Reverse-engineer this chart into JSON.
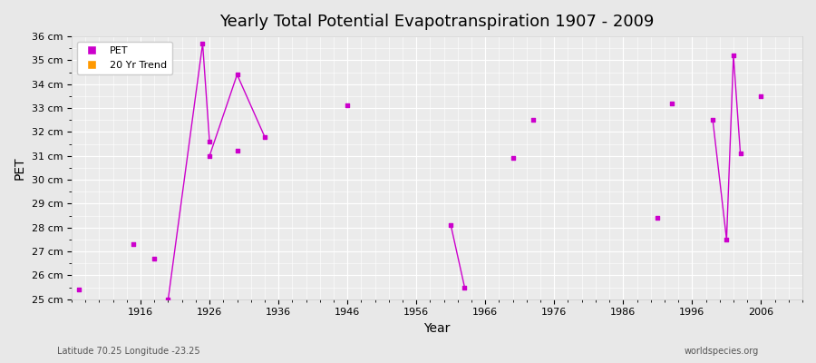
{
  "title": "Yearly Total Potential Evapotranspiration 1907 - 2009",
  "xlabel": "Year",
  "ylabel": "PET",
  "subtitle_left": "Latitude 70.25 Longitude -23.25",
  "subtitle_right": "worldspecies.org",
  "bg_color": "#e8e8e8",
  "plot_bg_color": "#ebebeb",
  "grid_color": "#ffffff",
  "pet_color": "#cc00cc",
  "trend_color": "#ff9900",
  "ylim": [
    25,
    36
  ],
  "xlim": [
    1906,
    2012
  ],
  "ytick_labels": [
    "25 cm",
    "26 cm",
    "27 cm",
    "28 cm",
    "29 cm",
    "30 cm",
    "31 cm",
    "32 cm",
    "33 cm",
    "34 cm",
    "35 cm",
    "36 cm"
  ],
  "ytick_values": [
    25,
    26,
    27,
    28,
    29,
    30,
    31,
    32,
    33,
    34,
    35,
    36
  ],
  "xtick_values": [
    1916,
    1926,
    1936,
    1946,
    1956,
    1966,
    1976,
    1986,
    1996,
    2006
  ],
  "pet_scatter": [
    [
      1907,
      25.4
    ],
    [
      1915,
      27.3
    ],
    [
      1918,
      26.7
    ],
    [
      1930,
      31.2
    ],
    [
      1946,
      33.1
    ],
    [
      1970,
      30.9
    ],
    [
      1973,
      32.5
    ],
    [
      1991,
      28.4
    ],
    [
      1993,
      33.2
    ],
    [
      2006,
      33.5
    ]
  ],
  "pet_spikes": [
    [
      [
        1920,
        25.0
      ],
      [
        1925,
        35.7
      ],
      [
        1926,
        31.6
      ]
    ],
    [
      [
        1926,
        31.0
      ],
      [
        1930,
        34.4
      ],
      [
        1934,
        31.8
      ]
    ],
    [
      [
        1961,
        28.1
      ],
      [
        1963,
        25.5
      ]
    ],
    [
      [
        1999,
        32.5
      ],
      [
        2001,
        27.5
      ],
      [
        2002,
        35.2
      ],
      [
        2003,
        31.1
      ]
    ]
  ],
  "legend_entries": [
    "PET",
    "20 Yr Trend"
  ]
}
